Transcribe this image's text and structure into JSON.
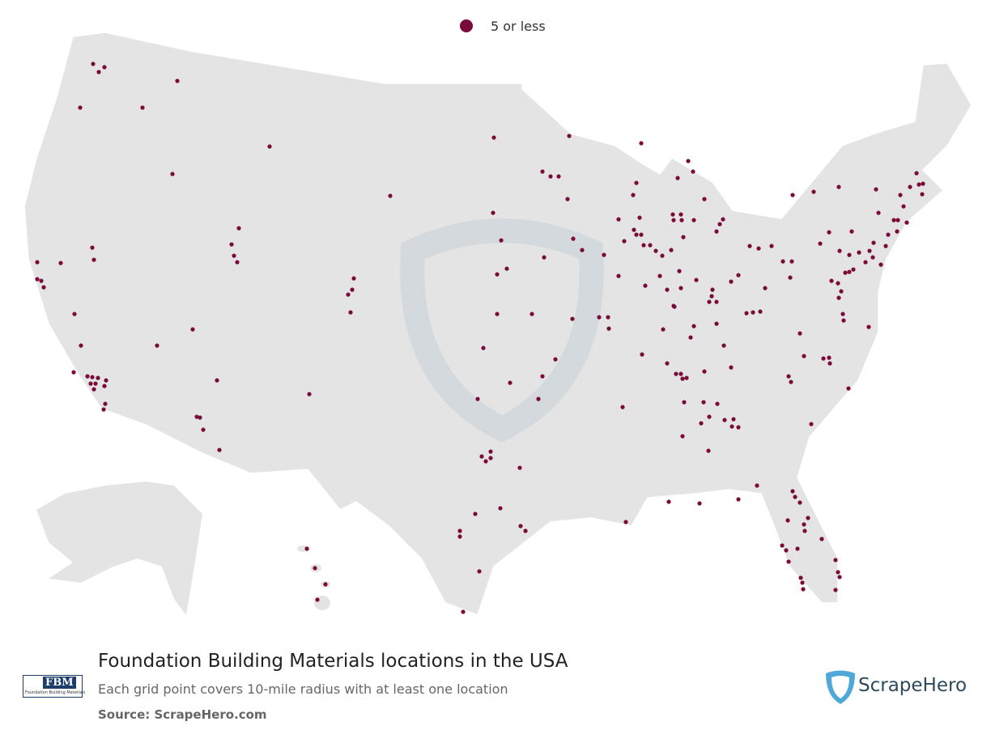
{
  "legend": {
    "label": "5 or less",
    "color": "#7a0a3a"
  },
  "title": "Foundation Building Materials locations in the USA",
  "subtitle": "Each grid point covers 10-mile radius with at least one location",
  "source": "Source: ScrapeHero.com",
  "brand_logo": {
    "short": "FBM",
    "full": "Foundation Building Materials"
  },
  "publisher": "ScrapeHero"
}
